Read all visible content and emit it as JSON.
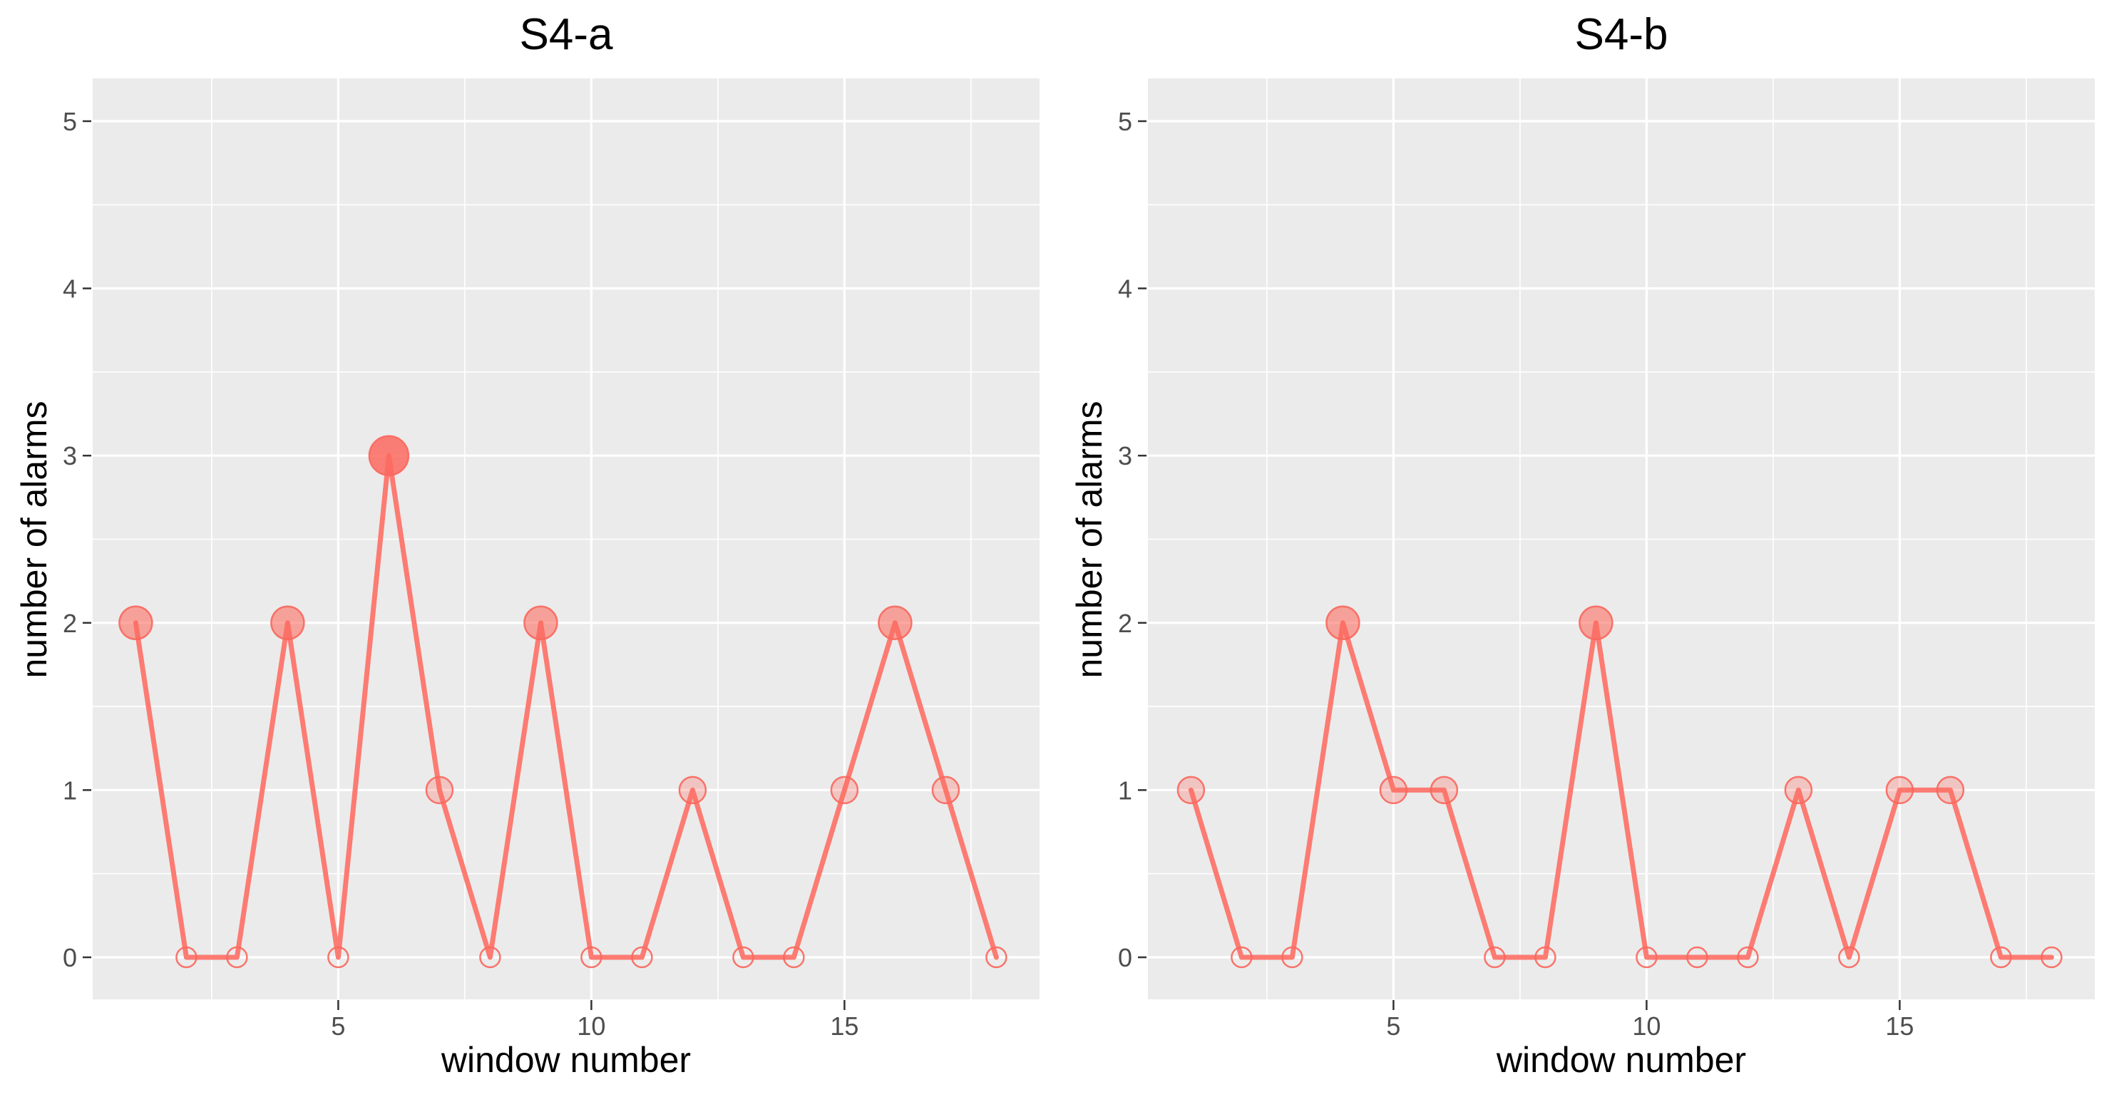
{
  "figure": {
    "colors": {
      "background": "#ffffff",
      "panel_background": "#ebebeb",
      "grid": "#ffffff",
      "line": "#fc7b72",
      "point_stroke": "#fa675d",
      "point_fill": "#fb6a5f",
      "tick_label": "#4d4d4d",
      "tick_mark": "#333333",
      "text": "#000000"
    }
  },
  "chart_data": [
    {
      "type": "line",
      "title": "S4-a",
      "xlabel": "window number",
      "ylabel": "number of alarms",
      "x": [
        1,
        2,
        3,
        4,
        5,
        6,
        7,
        8,
        9,
        10,
        11,
        12,
        13,
        14,
        15,
        16,
        17,
        18
      ],
      "y": [
        2,
        0,
        0,
        2,
        0,
        3,
        1,
        0,
        2,
        0,
        0,
        1,
        0,
        0,
        1,
        2,
        1,
        0
      ],
      "x_ticks": [
        5,
        10,
        15
      ],
      "y_ticks": [
        0,
        1,
        2,
        3,
        4,
        5
      ],
      "xlim": [
        1,
        18
      ],
      "ylim": [
        0,
        5
      ],
      "grid": true,
      "legend": "none",
      "point_encoding": "marker size and fill opacity increase with alarm count; zero values drawn as open circles"
    },
    {
      "type": "line",
      "title": "S4-b",
      "xlabel": "window number",
      "ylabel": "number of alarms",
      "x": [
        1,
        2,
        3,
        4,
        5,
        6,
        7,
        8,
        9,
        10,
        11,
        12,
        13,
        14,
        15,
        16,
        17,
        18
      ],
      "y": [
        1,
        0,
        0,
        2,
        1,
        1,
        0,
        0,
        2,
        0,
        0,
        0,
        1,
        0,
        1,
        1,
        0,
        0
      ],
      "x_ticks": [
        5,
        10,
        15
      ],
      "y_ticks": [
        0,
        1,
        2,
        3,
        4,
        5
      ],
      "xlim": [
        1,
        18
      ],
      "ylim": [
        0,
        5
      ],
      "grid": true,
      "legend": "none",
      "point_encoding": "marker size and fill opacity increase with alarm count; zero values drawn as open circles"
    }
  ]
}
